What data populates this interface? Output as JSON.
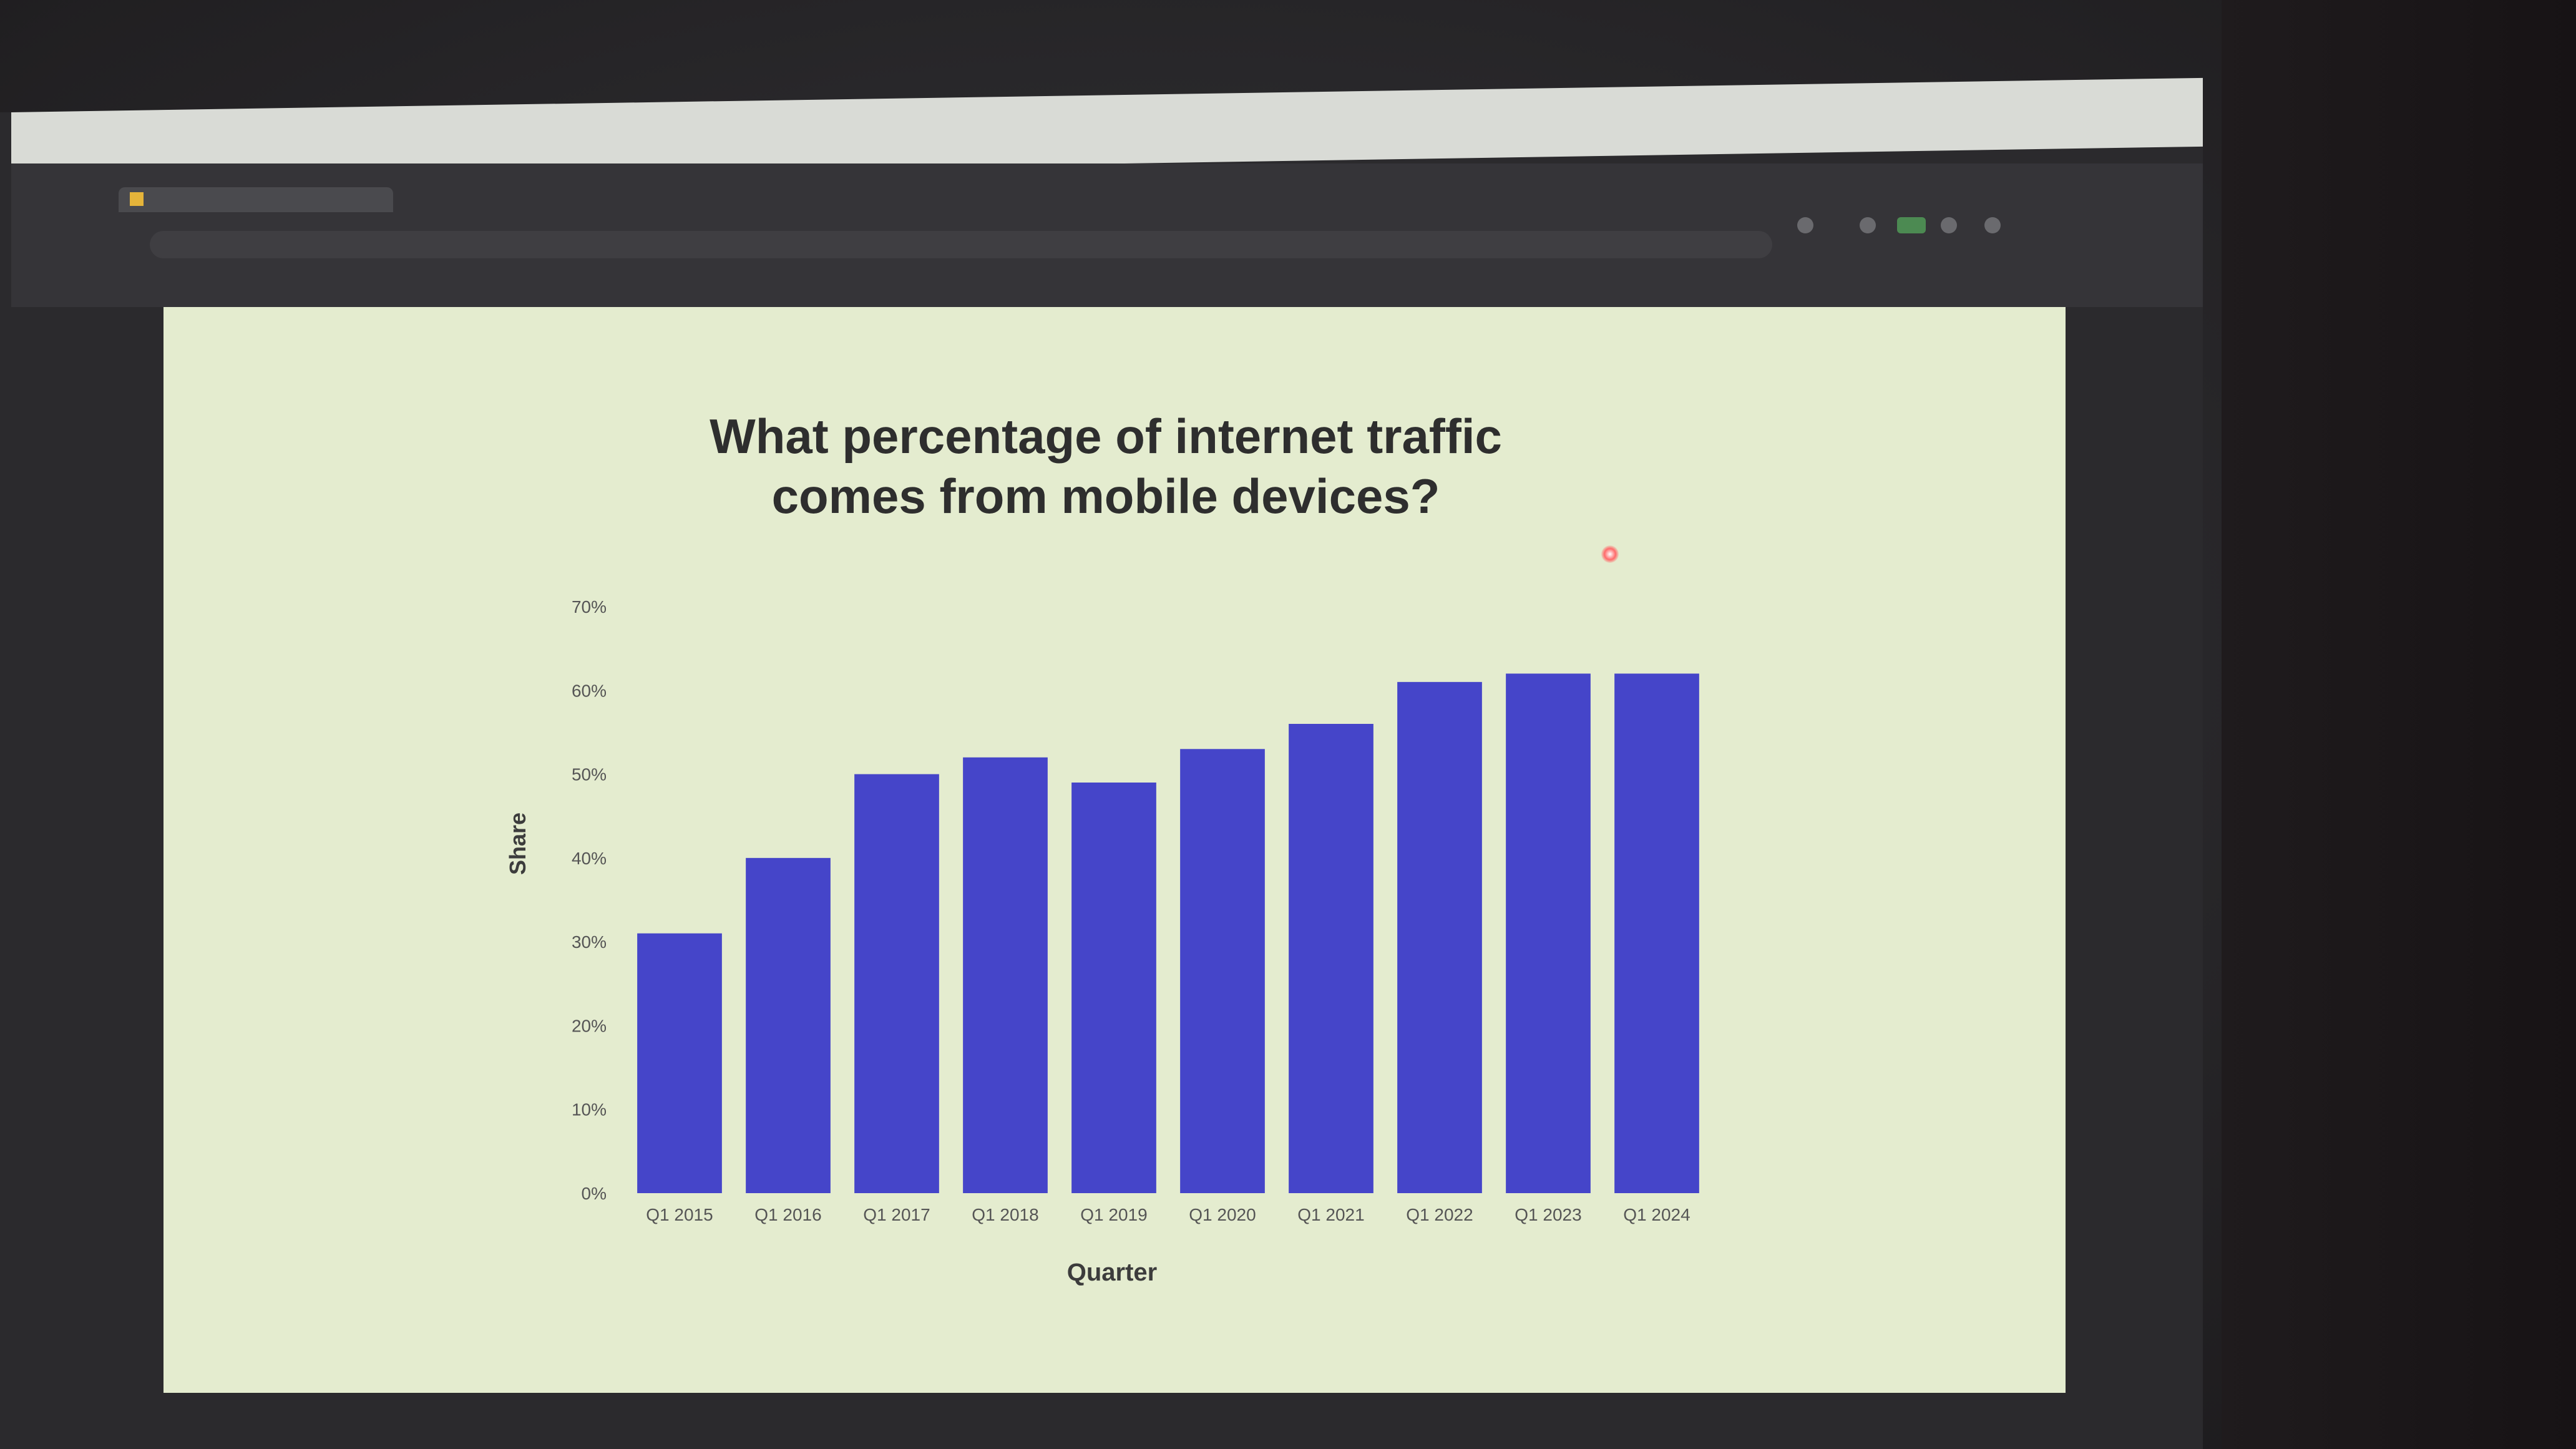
{
  "chart_data": {
    "type": "bar",
    "title_lines": [
      "What percentage of internet traffic",
      "comes from mobile devices?"
    ],
    "xlabel": "Quarter",
    "ylabel": "Share",
    "categories": [
      "Q1 2015",
      "Q1 2016",
      "Q1 2017",
      "Q1 2018",
      "Q1 2019",
      "Q1 2020",
      "Q1 2021",
      "Q1 2022",
      "Q1 2023",
      "Q1 2024"
    ],
    "values": [
      31,
      40,
      50,
      52,
      49,
      53,
      56,
      61,
      62,
      62
    ],
    "ylim": [
      0,
      70
    ],
    "yticks": [
      "0%",
      "10%",
      "20%",
      "30%",
      "40%",
      "50%",
      "60%",
      "70%"
    ],
    "bar_color": "#4545c9",
    "background_color": "#e4eccf",
    "grid": false,
    "legend": "none"
  }
}
